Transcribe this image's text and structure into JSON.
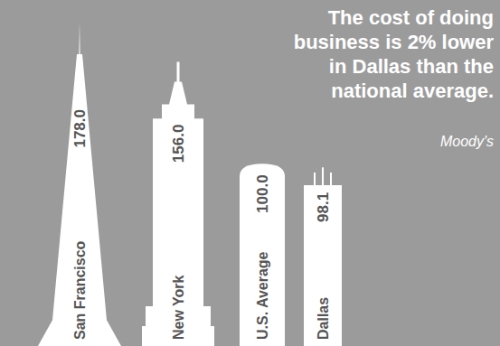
{
  "chart_data": {
    "type": "bar",
    "title": "The cost of doing business is 2% lower in Dallas than the national average.",
    "annotations": [
      "Moody's"
    ],
    "categories": [
      "San Francisco",
      "New York",
      "U.S. Average",
      "Dallas"
    ],
    "values": [
      178.0,
      156.0,
      100.0,
      98.1
    ],
    "value_labels": [
      "178.0",
      "156.0",
      "100.0",
      "98.1"
    ],
    "color": "#ffffff",
    "ylim": [
      0,
      180
    ],
    "data_labels": true,
    "tick_labels": "x"
  }
}
